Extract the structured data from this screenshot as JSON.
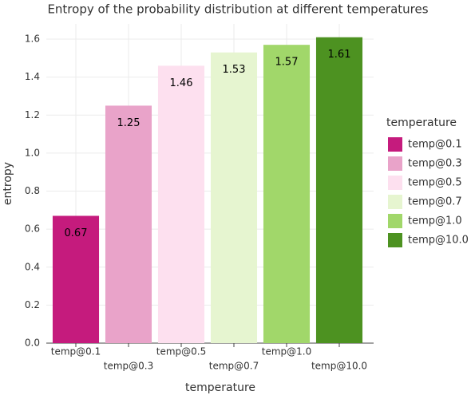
{
  "chart_data": {
    "type": "bar",
    "title": "Entropy of the probability distribution at different temperatures",
    "x_label": "temperature",
    "y_label": "entropy",
    "legend_title": "temperature",
    "categories": [
      "temp@0.1",
      "temp@0.3",
      "temp@0.5",
      "temp@0.7",
      "temp@1.0",
      "temp@10.0"
    ],
    "values": [
      0.67,
      1.25,
      1.46,
      1.53,
      1.57,
      1.61
    ],
    "colors": [
      "#c51b7d",
      "#e9a3c9",
      "#fde0ef",
      "#e6f5d0",
      "#a1d76a",
      "#4d9221"
    ],
    "ylim": [
      0,
      1.68
    ],
    "yticks": [
      {
        "value": 0,
        "label": "0.0"
      },
      0.2,
      0.4,
      0.6,
      0.8,
      {
        "value": 1,
        "label": "1.0"
      },
      1.2,
      1.4,
      1.6
    ],
    "grid": true,
    "legend": "right"
  }
}
